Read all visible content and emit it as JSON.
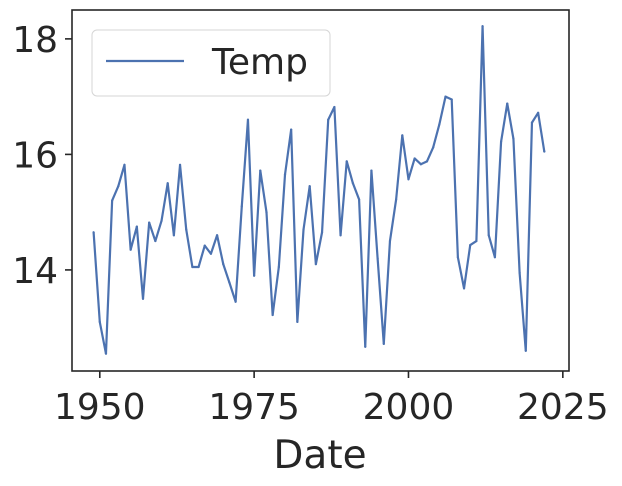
{
  "chart_data": {
    "type": "line",
    "title": "",
    "xlabel": "Date",
    "ylabel": "",
    "xlim": [
      1945.5,
      2026
    ],
    "ylim": [
      12.25,
      18.5
    ],
    "x_ticks": [
      1950,
      1975,
      2000,
      2025
    ],
    "y_ticks": [
      14,
      16,
      18
    ],
    "grid": false,
    "legend_position": "top-left",
    "series": [
      {
        "name": "Temp",
        "color": "#4c72b0",
        "points": [
          [
            1949,
            14.65
          ],
          [
            1950,
            13.1
          ],
          [
            1951,
            12.55
          ],
          [
            1952,
            15.2
          ],
          [
            1953,
            15.45
          ],
          [
            1954,
            15.82
          ],
          [
            1955,
            14.35
          ],
          [
            1956,
            14.75
          ],
          [
            1957,
            13.5
          ],
          [
            1958,
            14.82
          ],
          [
            1959,
            14.5
          ],
          [
            1960,
            14.85
          ],
          [
            1961,
            15.5
          ],
          [
            1962,
            14.6
          ],
          [
            1963,
            15.82
          ],
          [
            1964,
            14.7
          ],
          [
            1965,
            14.05
          ],
          [
            1966,
            14.05
          ],
          [
            1967,
            14.42
          ],
          [
            1968,
            14.28
          ],
          [
            1969,
            14.6
          ],
          [
            1970,
            14.1
          ],
          [
            1971,
            13.78
          ],
          [
            1972,
            13.45
          ],
          [
            1973,
            15.1
          ],
          [
            1974,
            16.6
          ],
          [
            1975,
            13.9
          ],
          [
            1976,
            15.72
          ],
          [
            1977,
            15.0
          ],
          [
            1978,
            13.22
          ],
          [
            1979,
            14.05
          ],
          [
            1980,
            15.65
          ],
          [
            1981,
            16.43
          ],
          [
            1982,
            13.1
          ],
          [
            1983,
            14.7
          ],
          [
            1984,
            15.45
          ],
          [
            1985,
            14.1
          ],
          [
            1986,
            14.65
          ],
          [
            1987,
            16.6
          ],
          [
            1988,
            16.82
          ],
          [
            1989,
            14.6
          ],
          [
            1990,
            15.88
          ],
          [
            1991,
            15.5
          ],
          [
            1992,
            15.22
          ],
          [
            1993,
            12.67
          ],
          [
            1994,
            15.72
          ],
          [
            1995,
            14.2
          ],
          [
            1996,
            12.72
          ],
          [
            1997,
            14.5
          ],
          [
            1998,
            15.22
          ],
          [
            1999,
            16.33
          ],
          [
            2000,
            15.57
          ],
          [
            2001,
            15.93
          ],
          [
            2002,
            15.83
          ],
          [
            2003,
            15.88
          ],
          [
            2004,
            16.12
          ],
          [
            2005,
            16.52
          ],
          [
            2006,
            17.0
          ],
          [
            2007,
            16.95
          ],
          [
            2008,
            14.22
          ],
          [
            2009,
            13.68
          ],
          [
            2010,
            14.43
          ],
          [
            2011,
            14.5
          ],
          [
            2012,
            18.22
          ],
          [
            2013,
            14.6
          ],
          [
            2014,
            14.22
          ],
          [
            2015,
            16.22
          ],
          [
            2016,
            16.88
          ],
          [
            2017,
            16.27
          ],
          [
            2018,
            13.95
          ],
          [
            2019,
            12.6
          ],
          [
            2020,
            16.55
          ],
          [
            2021,
            16.72
          ],
          [
            2022,
            16.05
          ]
        ]
      }
    ]
  }
}
